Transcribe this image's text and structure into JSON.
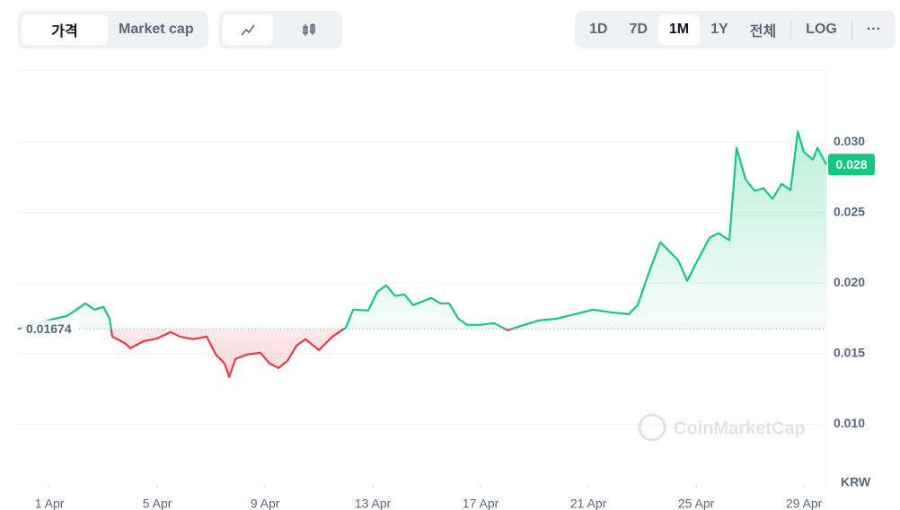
{
  "toolbar": {
    "tabs": [
      "가격",
      "Market cap"
    ],
    "active_tab": 0,
    "ranges": [
      "1D",
      "7D",
      "1M",
      "1Y",
      "전체"
    ],
    "active_range": 2,
    "log": "LOG",
    "more": "···"
  },
  "chart_data": {
    "type": "line",
    "x": [
      -0.17,
      0.5,
      1.67,
      2.33,
      2.67,
      3,
      3.23,
      3.33,
      3.83,
      4,
      4.5,
      5,
      5.5,
      5.83,
      6.33,
      6.83,
      7.17,
      7.5,
      7.67,
      7.9,
      8.33,
      8.83,
      9.17,
      9.5,
      9.83,
      10.17,
      10.5,
      11,
      11.5,
      12,
      12.27,
      12.83,
      13.17,
      13.5,
      13.83,
      14.17,
      14.5,
      15.17,
      15.5,
      15.83,
      16.17,
      16.5,
      17,
      17.5,
      18,
      18.5,
      19.17,
      19.83,
      20.5,
      21.17,
      21.83,
      22.5,
      22.83,
      23.17,
      23.67,
      24,
      24.33,
      24.67,
      25,
      25.5,
      25.83,
      26.23,
      26.5,
      26.83,
      27.17,
      27.5,
      27.83,
      28.17,
      28.5,
      28.77,
      29,
      29.33,
      29.5,
      29.83
    ],
    "values": [
      0.01674,
      0.01717,
      0.01768,
      0.01857,
      0.01812,
      0.01831,
      0.01748,
      0.01621,
      0.0157,
      0.01538,
      0.01589,
      0.01608,
      0.01653,
      0.01621,
      0.01602,
      0.01621,
      0.01494,
      0.0143,
      0.01334,
      0.01462,
      0.01494,
      0.01506,
      0.0143,
      0.01398,
      0.01449,
      0.01557,
      0.01602,
      0.01525,
      0.01621,
      0.01685,
      0.01812,
      0.01806,
      0.0194,
      0.01984,
      0.01908,
      0.0192,
      0.01844,
      0.01895,
      0.01857,
      0.01857,
      0.01748,
      0.01704,
      0.01704,
      0.01717,
      0.01666,
      0.01697,
      0.01736,
      0.01748,
      0.0178,
      0.01812,
      0.01793,
      0.0178,
      0.01844,
      0.02035,
      0.0229,
      0.02226,
      0.02162,
      0.02016,
      0.02143,
      0.02322,
      0.02354,
      0.02303,
      0.02959,
      0.02736,
      0.02653,
      0.02672,
      0.02596,
      0.02704,
      0.02659,
      0.03073,
      0.02927,
      0.02876,
      0.02959,
      0.0284
    ],
    "up_color": "#16c784",
    "down_color": "#ea3943",
    "baseline": 0.01674,
    "current_price": {
      "value": 0.0284,
      "label": "0.028"
    },
    "xlim": [
      -0.17,
      29.83
    ],
    "xticks": [
      {
        "value": 1,
        "label": "1 Apr"
      },
      {
        "value": 5,
        "label": "5 Apr"
      },
      {
        "value": 9,
        "label": "9 Apr"
      },
      {
        "value": 13,
        "label": "13 Apr"
      },
      {
        "value": 17,
        "label": "17 Apr"
      },
      {
        "value": 21,
        "label": "21 Apr"
      },
      {
        "value": 25,
        "label": "25 Apr"
      },
      {
        "value": 29,
        "label": "29 Apr"
      }
    ],
    "ylim": [
      0.0057,
      0.0351
    ],
    "yticks": [
      {
        "value": 0.01,
        "label": "0.010"
      },
      {
        "value": 0.015,
        "label": "0.015"
      },
      {
        "value": 0.02,
        "label": "0.020"
      },
      {
        "value": 0.025,
        "label": "0.025"
      },
      {
        "value": 0.03,
        "label": "0.030"
      }
    ],
    "grid": true,
    "currency": "KRW",
    "watermark": "CoinMarketCap"
  }
}
